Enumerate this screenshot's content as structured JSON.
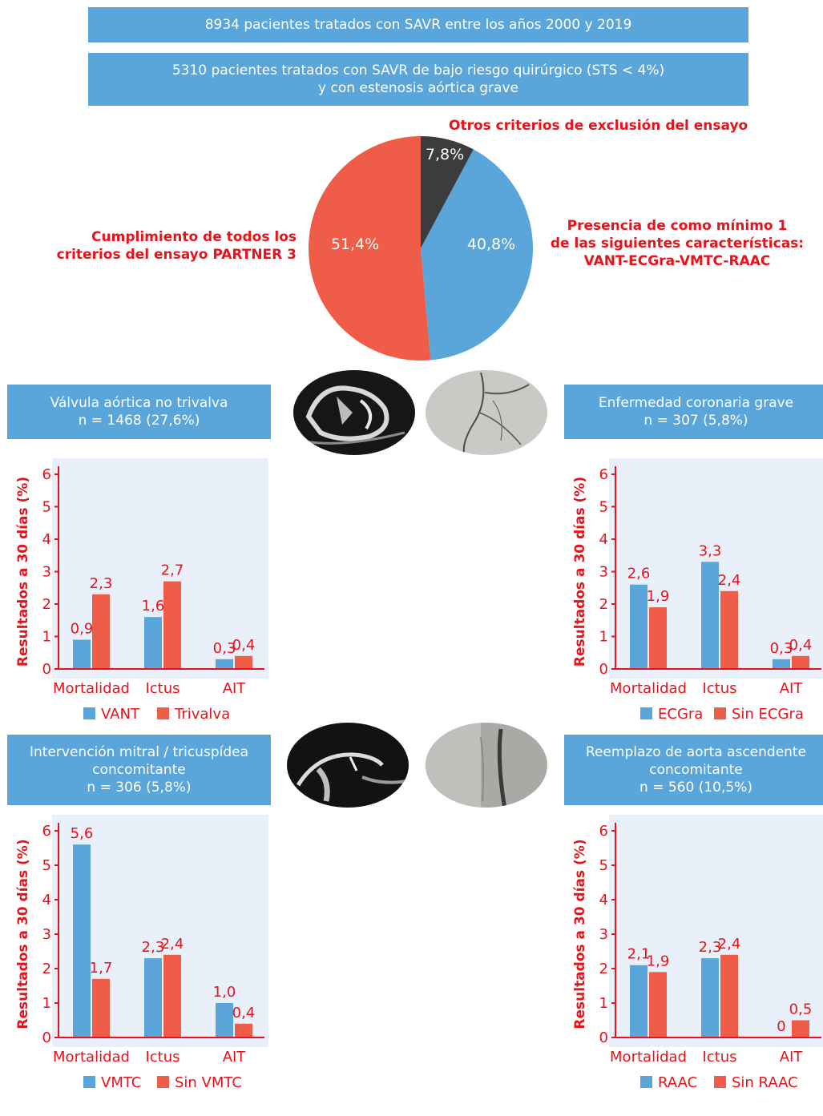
{
  "top": {
    "banner1": "8934 pacientes tratados con SAVR entre los años 2000 y 2019",
    "banner2_line1": "5310 pacientes tratados con SAVR de bajo riesgo quirúrgico (STS < 4%)",
    "banner2_line2": "y con estenosis aórtica grave"
  },
  "pie": {
    "label_other": "Otros criterios de exclusión del ensayo",
    "label_partner_line1": "Cumplimiento de todos los",
    "label_partner_line2": "criterios del ensayo PARTNER 3",
    "label_feature_line1": "Presencia de como mínimo 1",
    "label_feature_line2": "de las siguientes características:",
    "label_feature_line3": "VANT-ECGra-VMTC-RAAC",
    "colors": {
      "other": "#3c3c3e",
      "feature": "#5aa5d9",
      "partner": "#ef5c48"
    }
  },
  "panels": {
    "p1": {
      "title_line1": "Válvula aórtica no trivalva",
      "title_line2": "n = 1468 (27,6%)"
    },
    "p2": {
      "title_line1": "Enfermedad coronaria grave",
      "title_line2": "n = 307 (5,8%)"
    },
    "p3": {
      "title_line1": "Intervención mitral / tricuspídea",
      "title_line2": "concomitante",
      "title_line3": "n = 306 (5,8%)"
    },
    "p4": {
      "title_line1": "Reemplazo de aorta ascendente",
      "title_line2": "concomitante",
      "title_line3": "n = 560 (10,5%)"
    }
  },
  "colors": {
    "blue": "#5aa5d9",
    "red": "#ef5c48",
    "accent_text": "#e8121a",
    "chart_bg": "#e9f0f9"
  },
  "chart_data": [
    {
      "type": "pie",
      "slices": [
        {
          "label": "7,8%",
          "value": 7.8
        },
        {
          "label": "40,8%",
          "value": 40.8
        },
        {
          "label": "51,4%",
          "value": 51.4
        }
      ]
    },
    {
      "type": "bar",
      "ylabel": "Resultados a 30 días (%)",
      "ylim": [
        0,
        6
      ],
      "yticks": [
        "0",
        "1",
        "2",
        "3",
        "4",
        "5",
        "6"
      ],
      "categories": [
        "Mortalidad",
        "Ictus",
        "AIT"
      ],
      "series": [
        {
          "name": "VANT",
          "values": [
            0.9,
            1.6,
            0.3
          ],
          "labels": [
            "0,9",
            "1,6",
            "0,3"
          ]
        },
        {
          "name": "Trivalva",
          "values": [
            2.3,
            2.7,
            0.4
          ],
          "labels": [
            "2,3",
            "2,7",
            "0,4"
          ]
        }
      ],
      "legend": "bottom"
    },
    {
      "type": "bar",
      "ylabel": "Resultados a 30 días (%)",
      "ylim": [
        0,
        6
      ],
      "yticks": [
        "0",
        "1",
        "2",
        "3",
        "4",
        "5",
        "6"
      ],
      "categories": [
        "Mortalidad",
        "Ictus",
        "AIT"
      ],
      "series": [
        {
          "name": "ECGra",
          "values": [
            2.6,
            3.3,
            0.3
          ],
          "labels": [
            "2,6",
            "3,3",
            "0,3"
          ]
        },
        {
          "name": "Sin ECGra",
          "values": [
            1.9,
            2.4,
            0.4
          ],
          "labels": [
            "1,9",
            "2,4",
            "0,4"
          ]
        }
      ],
      "legend": "bottom"
    },
    {
      "type": "bar",
      "ylabel": "Resultados a 30 días (%)",
      "ylim": [
        0,
        6
      ],
      "yticks": [
        "0",
        "1",
        "2",
        "3",
        "4",
        "5",
        "6"
      ],
      "categories": [
        "Mortalidad",
        "Ictus",
        "AIT"
      ],
      "series": [
        {
          "name": "VMTC",
          "values": [
            5.6,
            2.3,
            1.0
          ],
          "labels": [
            "5,6",
            "2,3",
            "1,0"
          ]
        },
        {
          "name": "Sin VMTC",
          "values": [
            1.7,
            2.4,
            0.4
          ],
          "labels": [
            "1,7",
            "2,4",
            "0,4"
          ]
        }
      ],
      "legend": "bottom"
    },
    {
      "type": "bar",
      "ylabel": "Resultados a 30 días (%)",
      "ylim": [
        0,
        6
      ],
      "yticks": [
        "0",
        "1",
        "2",
        "3",
        "4",
        "5",
        "6"
      ],
      "categories": [
        "Mortalidad",
        "Ictus",
        "AIT"
      ],
      "series": [
        {
          "name": "RAAC",
          "values": [
            2.1,
            2.3,
            0
          ],
          "labels": [
            "2,1",
            "2,3",
            "0"
          ]
        },
        {
          "name": "Sin RAAC",
          "values": [
            1.9,
            2.4,
            0.5
          ],
          "labels": [
            "1,9",
            "2,4",
            "0,5"
          ]
        }
      ],
      "legend": "bottom"
    }
  ]
}
